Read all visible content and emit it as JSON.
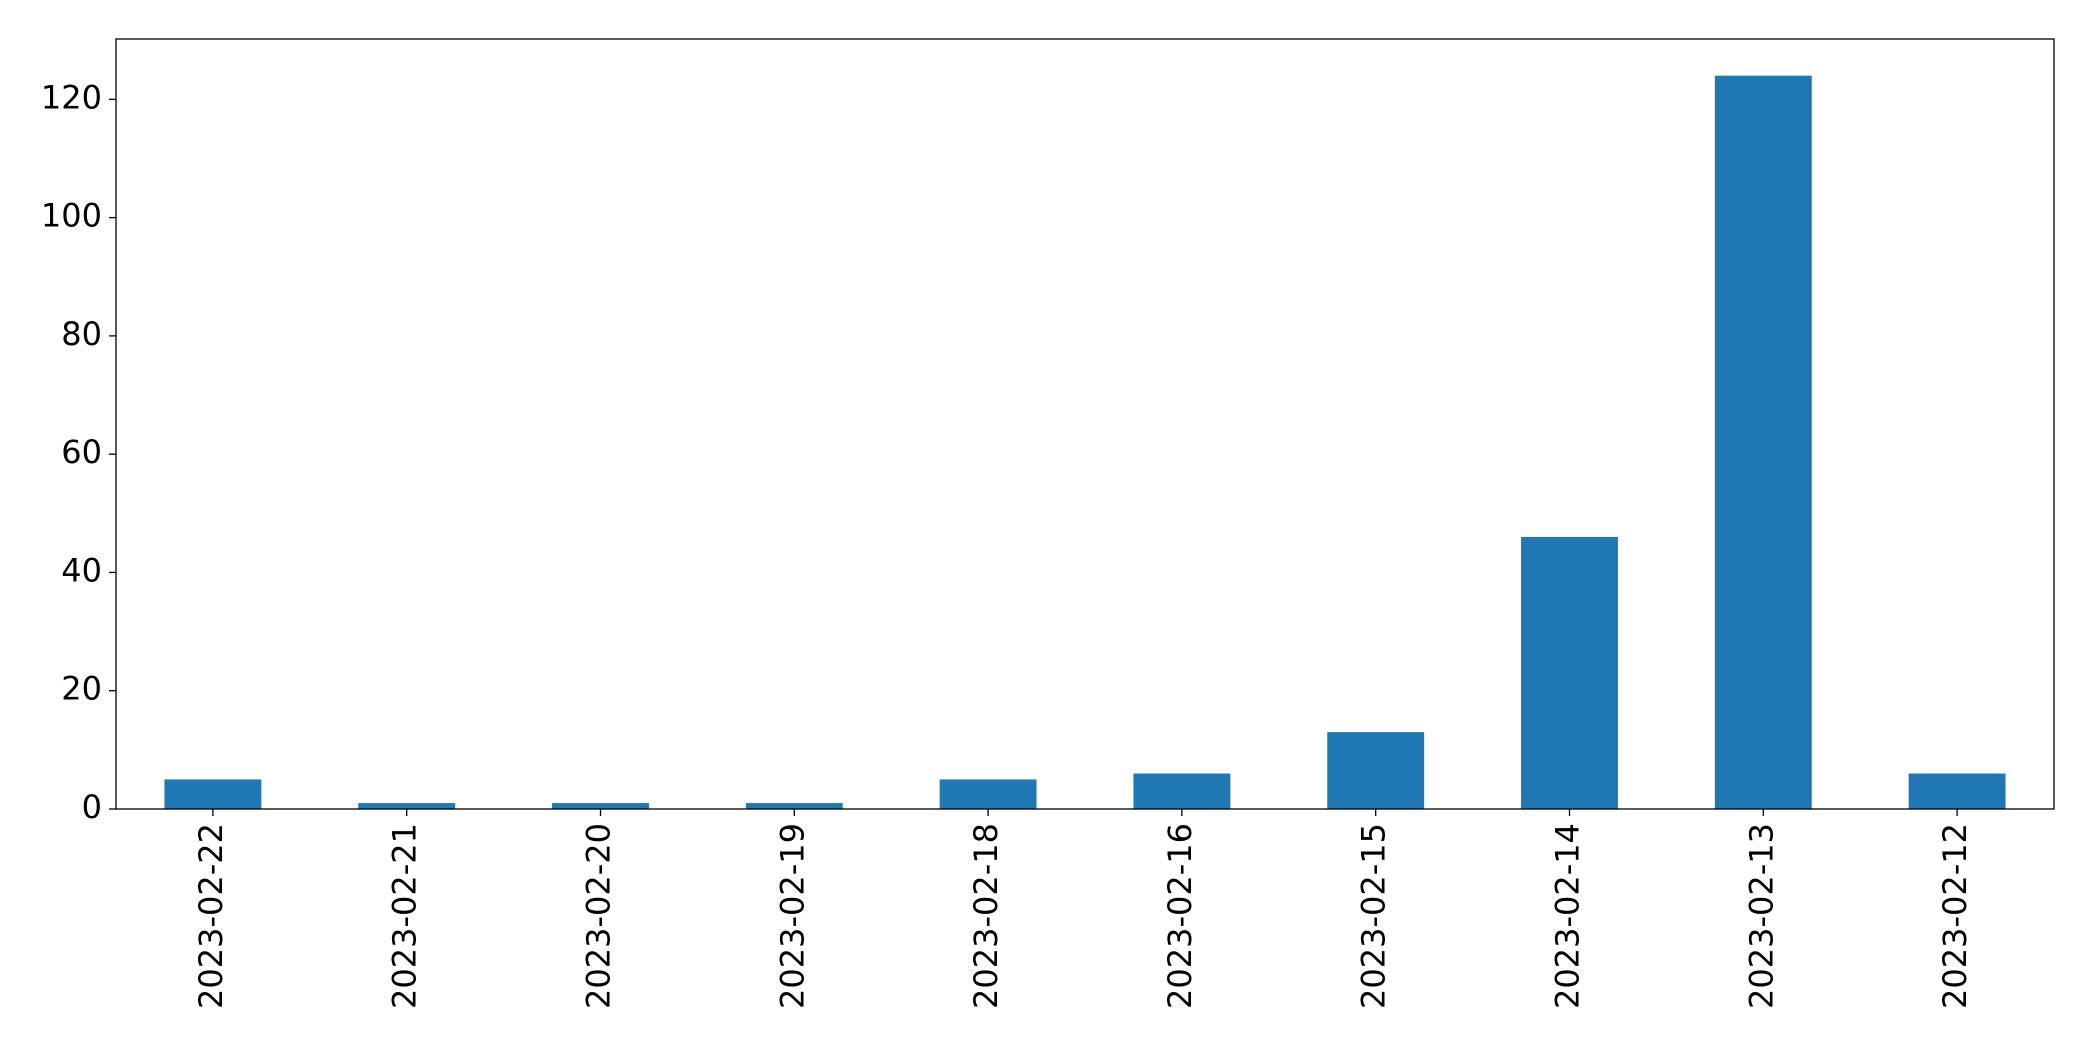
{
  "chart_data": {
    "type": "bar",
    "categories": [
      "2023-02-22",
      "2023-02-21",
      "2023-02-20",
      "2023-02-19",
      "2023-02-18",
      "2023-02-16",
      "2023-02-15",
      "2023-02-14",
      "2023-02-13",
      "2023-02-12"
    ],
    "values": [
      5,
      1,
      1,
      1,
      5,
      6,
      13,
      46,
      124,
      6
    ],
    "color": "#1f77b4",
    "ylim": [
      0,
      130.2
    ],
    "yticks": [
      0,
      20,
      40,
      60,
      80,
      100,
      120
    ],
    "grid": false
  }
}
